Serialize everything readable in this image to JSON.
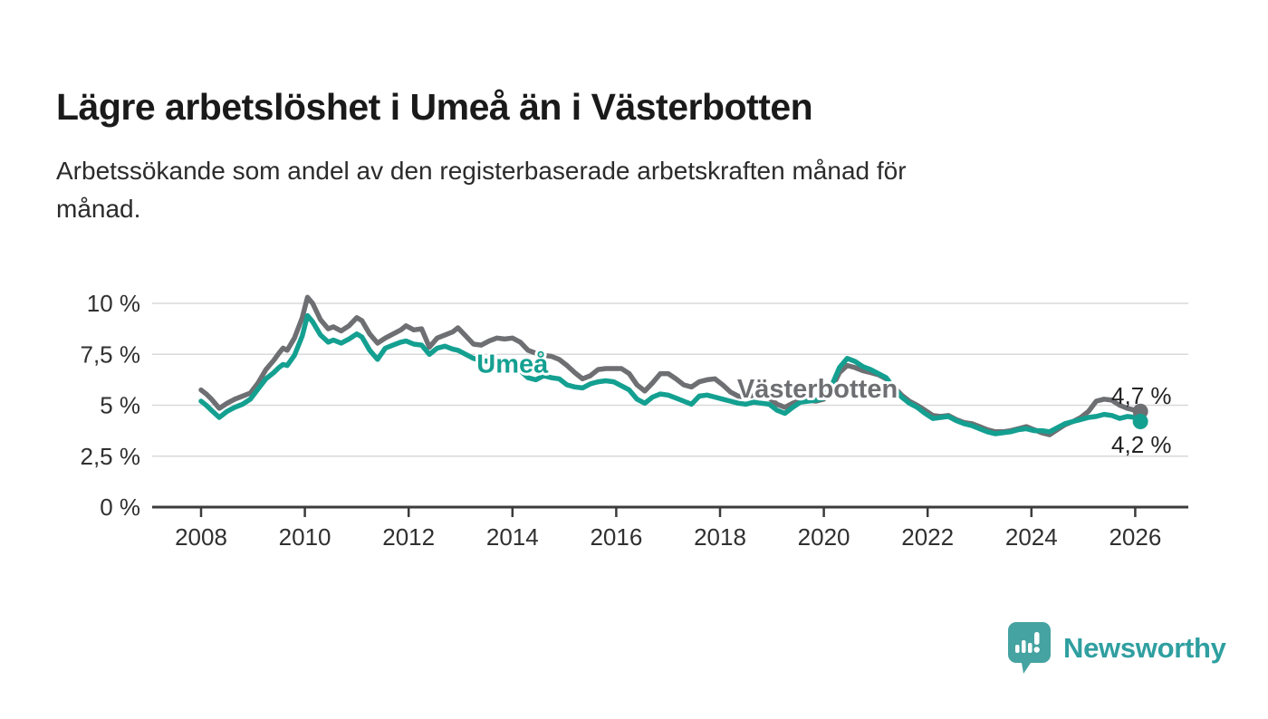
{
  "header": {
    "title": "Lägre arbetslöshet i Umeå än i Västerbotten",
    "subtitle": "Arbetssökande som andel av den registerbaserade arbetskraften månad för\nmånad."
  },
  "footer": {
    "brand": "Newsworthy"
  },
  "colors": {
    "umea_line": "#14a091",
    "vasterbotten_line": "#6e6f72",
    "grid": "#d9d9d9",
    "axis": "#3b3b3b",
    "tick_text": "#303030",
    "annotation_text": "#222222",
    "brand_teal": "#2f9fa0"
  },
  "chart_data": {
    "type": "line",
    "title": "Lägre arbetslöshet i Umeå än i Västerbotten",
    "xlabel": "",
    "ylabel": "",
    "ylim": [
      0,
      10.9
    ],
    "xlim": [
      2007.05,
      2027.0
    ],
    "grid": "horizontal",
    "legend_position": "inline-labels",
    "y_ticks": [
      {
        "v": 0,
        "label": "0 %"
      },
      {
        "v": 2.5,
        "label": "2,5 %"
      },
      {
        "v": 5,
        "label": "5 %"
      },
      {
        "v": 7.5,
        "label": "7,5 %"
      },
      {
        "v": 10,
        "label": "10 %"
      }
    ],
    "x_ticks": [
      {
        "v": 2008,
        "label": "2008"
      },
      {
        "v": 2010,
        "label": "2010"
      },
      {
        "v": 2012,
        "label": "2012"
      },
      {
        "v": 2014,
        "label": "2014"
      },
      {
        "v": 2016,
        "label": "2016"
      },
      {
        "v": 2018,
        "label": "2018"
      },
      {
        "v": 2020,
        "label": "2020"
      },
      {
        "v": 2022,
        "label": "2022"
      },
      {
        "v": 2024,
        "label": "2024"
      },
      {
        "v": 2026,
        "label": "2026"
      }
    ],
    "x": [
      2008.0,
      2008.1,
      2008.2,
      2008.35,
      2008.5,
      2008.65,
      2008.8,
      2008.95,
      2009.1,
      2009.25,
      2009.4,
      2009.5,
      2009.58,
      2009.66,
      2009.8,
      2009.95,
      2010.05,
      2010.15,
      2010.3,
      2010.45,
      2010.55,
      2010.7,
      2010.85,
      2011.0,
      2011.1,
      2011.25,
      2011.4,
      2011.55,
      2011.7,
      2011.85,
      2011.95,
      2012.1,
      2012.25,
      2012.4,
      2012.55,
      2012.7,
      2012.85,
      2012.95,
      2013.1,
      2013.25,
      2013.4,
      2013.55,
      2013.7,
      2013.85,
      2014.0,
      2014.15,
      2014.3,
      2014.45,
      2014.6,
      2014.75,
      2014.9,
      2015.05,
      2015.2,
      2015.35,
      2015.5,
      2015.65,
      2015.8,
      2015.95,
      2016.1,
      2016.25,
      2016.4,
      2016.55,
      2016.7,
      2016.85,
      2017.0,
      2017.15,
      2017.3,
      2017.45,
      2017.6,
      2017.75,
      2017.9,
      2018.05,
      2018.2,
      2018.35,
      2018.5,
      2018.65,
      2018.8,
      2018.95,
      2019.1,
      2019.25,
      2019.4,
      2019.55,
      2019.7,
      2019.85,
      2020.0,
      2020.15,
      2020.3,
      2020.45,
      2020.6,
      2020.75,
      2020.9,
      2021.05,
      2021.2,
      2021.35,
      2021.5,
      2021.65,
      2021.8,
      2021.95,
      2022.1,
      2022.25,
      2022.4,
      2022.55,
      2022.7,
      2022.85,
      2023.0,
      2023.15,
      2023.3,
      2023.45,
      2023.6,
      2023.75,
      2023.9,
      2024.05,
      2024.2,
      2024.35,
      2024.5,
      2024.65,
      2024.8,
      2024.95,
      2025.1,
      2025.25,
      2025.4,
      2025.55,
      2025.7,
      2025.85,
      2026.0,
      2026.1
    ],
    "series": [
      {
        "name": "Västerbotten",
        "color": "#6e6f72",
        "values": [
          5.75,
          5.55,
          5.3,
          4.85,
          5.1,
          5.3,
          5.45,
          5.6,
          6.1,
          6.75,
          7.2,
          7.55,
          7.8,
          7.7,
          8.3,
          9.3,
          10.3,
          10.0,
          9.2,
          8.75,
          8.85,
          8.65,
          8.9,
          9.3,
          9.15,
          8.5,
          8.05,
          8.3,
          8.5,
          8.7,
          8.9,
          8.7,
          8.75,
          7.85,
          8.3,
          8.45,
          8.6,
          8.8,
          8.4,
          8.0,
          7.95,
          8.15,
          8.3,
          8.25,
          8.3,
          8.1,
          7.7,
          7.55,
          7.45,
          7.4,
          7.25,
          6.95,
          6.6,
          6.3,
          6.45,
          6.75,
          6.8,
          6.8,
          6.8,
          6.55,
          6.0,
          5.7,
          6.1,
          6.55,
          6.55,
          6.3,
          6.0,
          5.9,
          6.15,
          6.25,
          6.3,
          6.0,
          5.65,
          5.45,
          5.4,
          5.5,
          5.45,
          5.35,
          5.05,
          4.9,
          5.1,
          5.25,
          5.25,
          5.2,
          5.3,
          5.8,
          6.6,
          6.95,
          6.85,
          6.7,
          6.6,
          6.5,
          6.3,
          5.9,
          5.5,
          5.2,
          5.0,
          4.75,
          4.5,
          4.45,
          4.5,
          4.3,
          4.15,
          4.1,
          3.95,
          3.8,
          3.7,
          3.7,
          3.75,
          3.85,
          3.95,
          3.8,
          3.65,
          3.55,
          3.8,
          4.05,
          4.2,
          4.4,
          4.7,
          5.2,
          5.3,
          5.25,
          5.0,
          4.85,
          4.75,
          4.7
        ],
        "end_dot": true,
        "inline_label": {
          "text": "Västerbotten",
          "year": 2018.33,
          "pct": 5.38
        },
        "end_annotation": {
          "text": "4,7 %",
          "year": 2025.54,
          "pct": 5.07
        }
      },
      {
        "name": "Umeå",
        "color": "#14a091",
        "values": [
          5.2,
          5.0,
          4.75,
          4.4,
          4.7,
          4.9,
          5.05,
          5.3,
          5.8,
          6.3,
          6.6,
          6.85,
          7.0,
          6.95,
          7.45,
          8.4,
          9.4,
          9.1,
          8.45,
          8.1,
          8.2,
          8.05,
          8.25,
          8.5,
          8.35,
          7.7,
          7.25,
          7.8,
          7.95,
          8.1,
          8.15,
          8.0,
          7.95,
          7.5,
          7.8,
          7.9,
          7.75,
          7.7,
          7.5,
          7.3,
          7.2,
          7.15,
          7.1,
          7.0,
          6.95,
          6.7,
          6.35,
          6.25,
          6.45,
          6.35,
          6.3,
          6.0,
          5.9,
          5.85,
          6.05,
          6.15,
          6.2,
          6.15,
          5.95,
          5.75,
          5.3,
          5.1,
          5.4,
          5.55,
          5.5,
          5.35,
          5.2,
          5.05,
          5.45,
          5.5,
          5.4,
          5.3,
          5.2,
          5.1,
          5.05,
          5.15,
          5.1,
          5.05,
          4.75,
          4.6,
          4.9,
          5.15,
          5.2,
          5.25,
          5.35,
          5.95,
          6.85,
          7.3,
          7.15,
          6.9,
          6.75,
          6.55,
          6.35,
          5.85,
          5.4,
          5.1,
          4.9,
          4.6,
          4.35,
          4.4,
          4.45,
          4.25,
          4.1,
          4.0,
          3.85,
          3.7,
          3.6,
          3.65,
          3.7,
          3.8,
          3.85,
          3.75,
          3.75,
          3.7,
          3.9,
          4.1,
          4.2,
          4.3,
          4.4,
          4.45,
          4.55,
          4.5,
          4.35,
          4.45,
          4.4,
          4.2
        ],
        "end_dot": true,
        "inline_label": {
          "text": "Umeå",
          "year": 2013.31,
          "pct": 6.6
        },
        "end_annotation": {
          "text": "4,2 %",
          "year": 2025.54,
          "pct": 2.67
        }
      }
    ]
  }
}
